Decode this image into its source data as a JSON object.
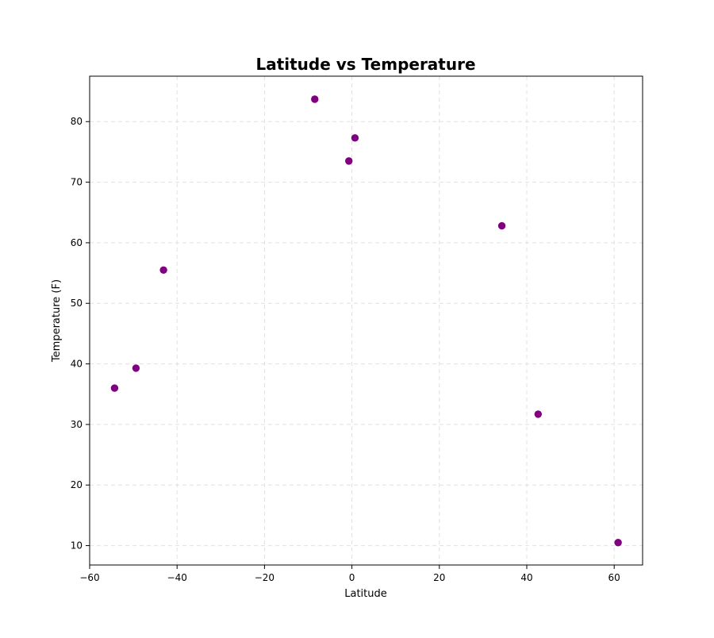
{
  "chart_data": {
    "type": "scatter",
    "title": "Latitude vs Temperature",
    "xlabel": "Latitude",
    "ylabel": "Temperature (F)",
    "xlim": [
      -60,
      66.5
    ],
    "ylim": [
      6.8,
      87.5
    ],
    "xticks": [
      -60,
      -40,
      -20,
      0,
      20,
      40,
      60
    ],
    "yticks": [
      10,
      20,
      30,
      40,
      50,
      60,
      70,
      80
    ],
    "xtick_labels": [
      "−60",
      "−40",
      "−20",
      "0",
      "20",
      "40",
      "60"
    ],
    "ytick_labels": [
      "10",
      "20",
      "30",
      "40",
      "50",
      "60",
      "70",
      "80"
    ],
    "grid": true,
    "marker_color": "#800080",
    "points": [
      {
        "x": -54.3,
        "y": 36.0
      },
      {
        "x": -49.4,
        "y": 39.3
      },
      {
        "x": -43.1,
        "y": 55.5
      },
      {
        "x": -8.5,
        "y": 83.7
      },
      {
        "x": -0.7,
        "y": 73.5
      },
      {
        "x": 0.7,
        "y": 77.3
      },
      {
        "x": 34.3,
        "y": 62.8
      },
      {
        "x": 42.6,
        "y": 31.7
      },
      {
        "x": 60.9,
        "y": 10.5
      }
    ]
  }
}
